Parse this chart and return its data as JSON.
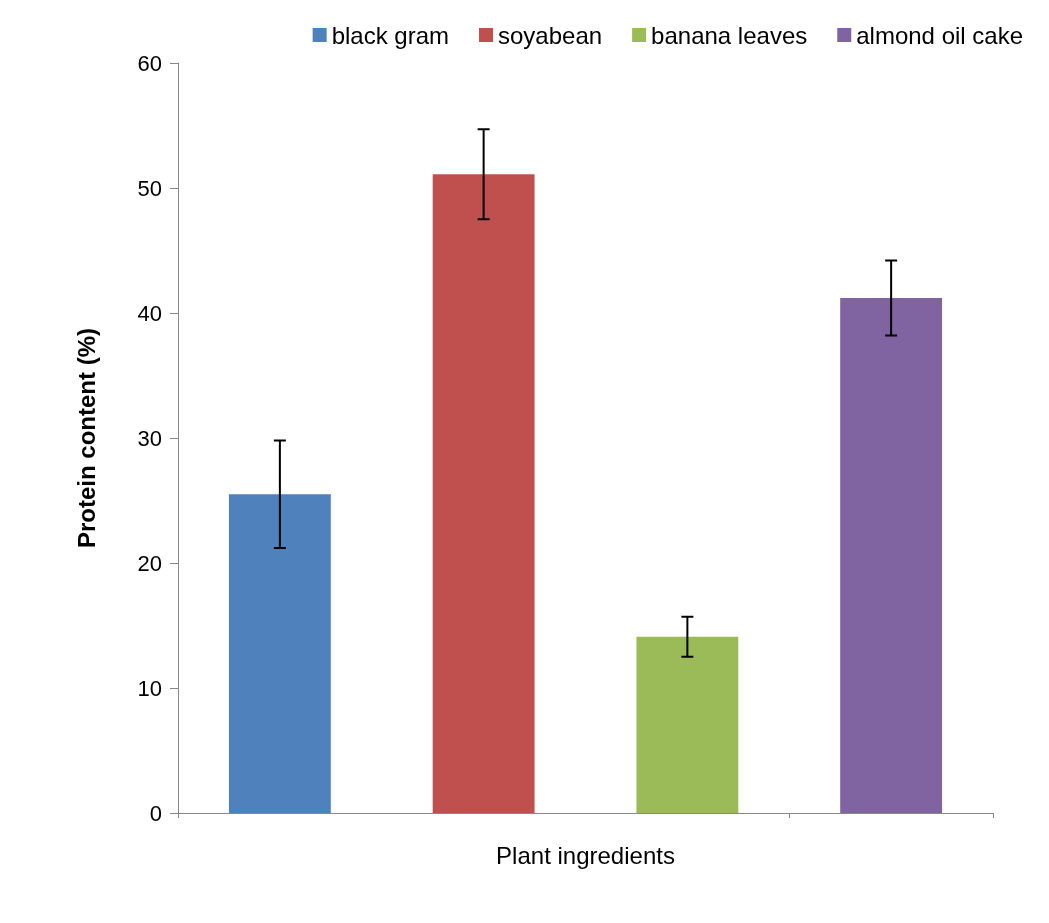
{
  "chart_data": {
    "type": "bar",
    "xlabel": "Plant ingredients",
    "ylabel": "Protein content (%)",
    "categories": [
      null,
      null,
      null,
      null
    ],
    "series": [
      {
        "name": "black gram",
        "color": "#4f81bd",
        "values": [
          25.5,
          null,
          null,
          null
        ],
        "errors": [
          4.3,
          null,
          null,
          null
        ]
      },
      {
        "name": "soyabean",
        "color": "#c0504d",
        "values": [
          null,
          51.1,
          null,
          null
        ],
        "errors": [
          null,
          3.6,
          null,
          null
        ]
      },
      {
        "name": "banana leaves",
        "color": "#9bbb59",
        "values": [
          null,
          null,
          14.1,
          null
        ],
        "errors": [
          null,
          null,
          1.6,
          null
        ]
      },
      {
        "name": "almond oil cake",
        "color": "#8064a2",
        "values": [
          null,
          null,
          null,
          41.2
        ],
        "errors": [
          null,
          null,
          null,
          3.0
        ]
      }
    ],
    "ylim": [
      0,
      60
    ],
    "yticks": [
      0,
      10,
      20,
      30,
      40,
      50,
      60
    ],
    "grid": false,
    "legend": "top right"
  }
}
